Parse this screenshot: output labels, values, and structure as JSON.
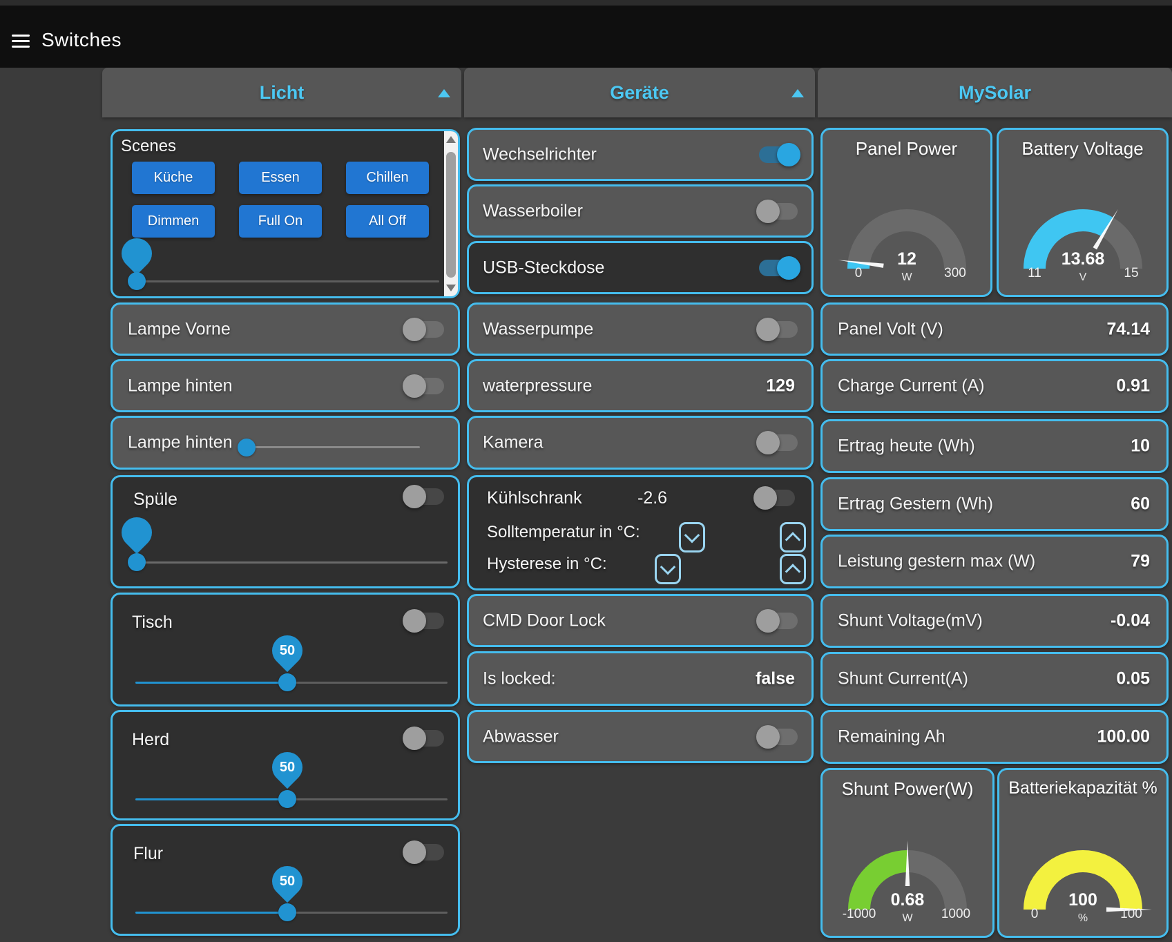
{
  "colors": {
    "accent_border": "#45bdee",
    "panel_title": "#4cc7f2",
    "button_blue": "#2176d2",
    "toggle_on_blue": "#29a6e1",
    "slider_blue": "#2193d1",
    "gauge_cyan": "#3fc6f2",
    "gauge_green": "#78ce32",
    "gauge_yellow": "#f3f13f"
  },
  "header": {
    "title": "Switches"
  },
  "licht": {
    "title": "Licht",
    "scenes": {
      "label": "Scenes",
      "buttons": [
        "Küche",
        "Essen",
        "Chillen",
        "Dimmen",
        "Full On",
        "All Off"
      ],
      "slider_value": "0"
    },
    "lampe_vorne": {
      "label": "Lampe Vorne",
      "state": "off"
    },
    "lampe_hinten_switch": {
      "label": "Lampe hinten",
      "state": "off"
    },
    "lampe_hinten_slider": {
      "label": "Lampe hinten",
      "value": "0"
    },
    "spuele": {
      "label": "Spüle",
      "state": "off",
      "slider_value": "0"
    },
    "tisch": {
      "label": "Tisch",
      "state": "off",
      "slider_value": "50"
    },
    "herd": {
      "label": "Herd",
      "state": "off",
      "slider_value": "50"
    },
    "flur": {
      "label": "Flur",
      "state": "off",
      "slider_value": "50"
    }
  },
  "geraete": {
    "title": "Geräte",
    "wechselrichter": {
      "label": "Wechselrichter",
      "state": "on"
    },
    "wasserboiler": {
      "label": "Wasserboiler",
      "state": "off"
    },
    "usb_steckdose": {
      "label": "USB-Steckdose",
      "state": "on"
    },
    "wasserpumpe": {
      "label": "Wasserpumpe",
      "state": "off"
    },
    "waterpressure": {
      "label": "waterpressure",
      "value": "129"
    },
    "kamera": {
      "label": "Kamera",
      "state": "off"
    },
    "kuehlschrank": {
      "label": "Kühlschrank",
      "value": "-2.6",
      "state": "off",
      "soll_label": "Solltemperatur in °C:",
      "hysterese_label": "Hysterese in °C:"
    },
    "cmd_door_lock": {
      "label": "CMD Door Lock",
      "state": "off"
    },
    "is_locked": {
      "label": "Is locked:",
      "value": "false"
    },
    "abwasser": {
      "label": "Abwasser",
      "state": "off"
    }
  },
  "mysolar": {
    "title": "MySolar",
    "rows": [
      {
        "label": "Panel Volt (V)",
        "value": "74.14"
      },
      {
        "label": "Charge Current (A)",
        "value": "0.91"
      },
      {
        "label": "Ertrag heute (Wh)",
        "value": "10"
      },
      {
        "label": "Ertrag Gestern (Wh)",
        "value": "60"
      },
      {
        "label": "Leistung gestern max (W)",
        "value": "79"
      },
      {
        "label": "Shunt Voltage(mV)",
        "value": "-0.04"
      },
      {
        "label": "Shunt Current(A)",
        "value": "0.05"
      },
      {
        "label": "Remaining Ah",
        "value": "100.00"
      }
    ],
    "gauges": {
      "panel_power": {
        "title": "Panel Power",
        "value": "12",
        "unit": "W",
        "min": "0",
        "max": "300",
        "fraction": 0.04,
        "color": "#3fc6f2"
      },
      "battery_voltage": {
        "title": "Battery Voltage",
        "value": "13.68",
        "unit": "V",
        "min": "11",
        "max": "15",
        "fraction": 0.67,
        "color": "#3fc6f2"
      },
      "shunt_power": {
        "title": "Shunt Power(W)",
        "value": "0.68",
        "unit": "W",
        "min": "-1000",
        "max": "1000",
        "fraction": 0.5,
        "color": "#78ce32"
      },
      "batteriekapazitaet": {
        "title": "Batteriekapazität %",
        "value": "100",
        "unit": "%",
        "min": "0",
        "max": "100",
        "fraction": 1.0,
        "color": "#f3f13f"
      }
    }
  }
}
